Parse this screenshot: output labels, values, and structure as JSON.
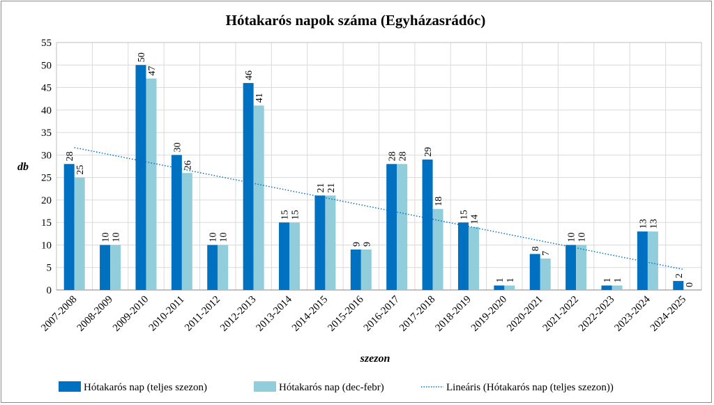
{
  "chart_data": {
    "type": "bar",
    "title": "Hótakarós napok száma (Egyházasrádóc)",
    "xlabel": "szezon",
    "ylabel": "db",
    "ylim": [
      0,
      55
    ],
    "yticks": [
      0,
      5,
      10,
      15,
      20,
      25,
      30,
      35,
      40,
      45,
      50,
      55
    ],
    "grid": true,
    "legend_position": "bottom",
    "categories": [
      "2007-2008",
      "2008-2009",
      "2009-2010",
      "2010-2011",
      "2011-2012",
      "2012-2013",
      "2013-2014",
      "2014-2015",
      "2015-2016",
      "2016-2017",
      "2017-2018",
      "2018-2019",
      "2019-2020",
      "2020-2021",
      "2021-2022",
      "2022-2023",
      "2023-2024",
      "2024-2025"
    ],
    "series": [
      {
        "name": "Hótakarós nap (teljes szezon)",
        "color": "#0070c0",
        "values": [
          28,
          10,
          50,
          30,
          10,
          46,
          15,
          21,
          9,
          28,
          29,
          15,
          1,
          8,
          10,
          1,
          13,
          2
        ]
      },
      {
        "name": "Hótakarós nap (dec-febr)",
        "color": "#92cddc",
        "values": [
          25,
          10,
          47,
          26,
          10,
          41,
          15,
          21,
          9,
          28,
          18,
          14,
          1,
          7,
          10,
          1,
          13,
          0
        ]
      }
    ],
    "trendline": {
      "name": "Lineáris (Hótakarós nap (teljes szezon))",
      "color": "#0070c0",
      "type": "linear",
      "of_series": 0
    }
  }
}
